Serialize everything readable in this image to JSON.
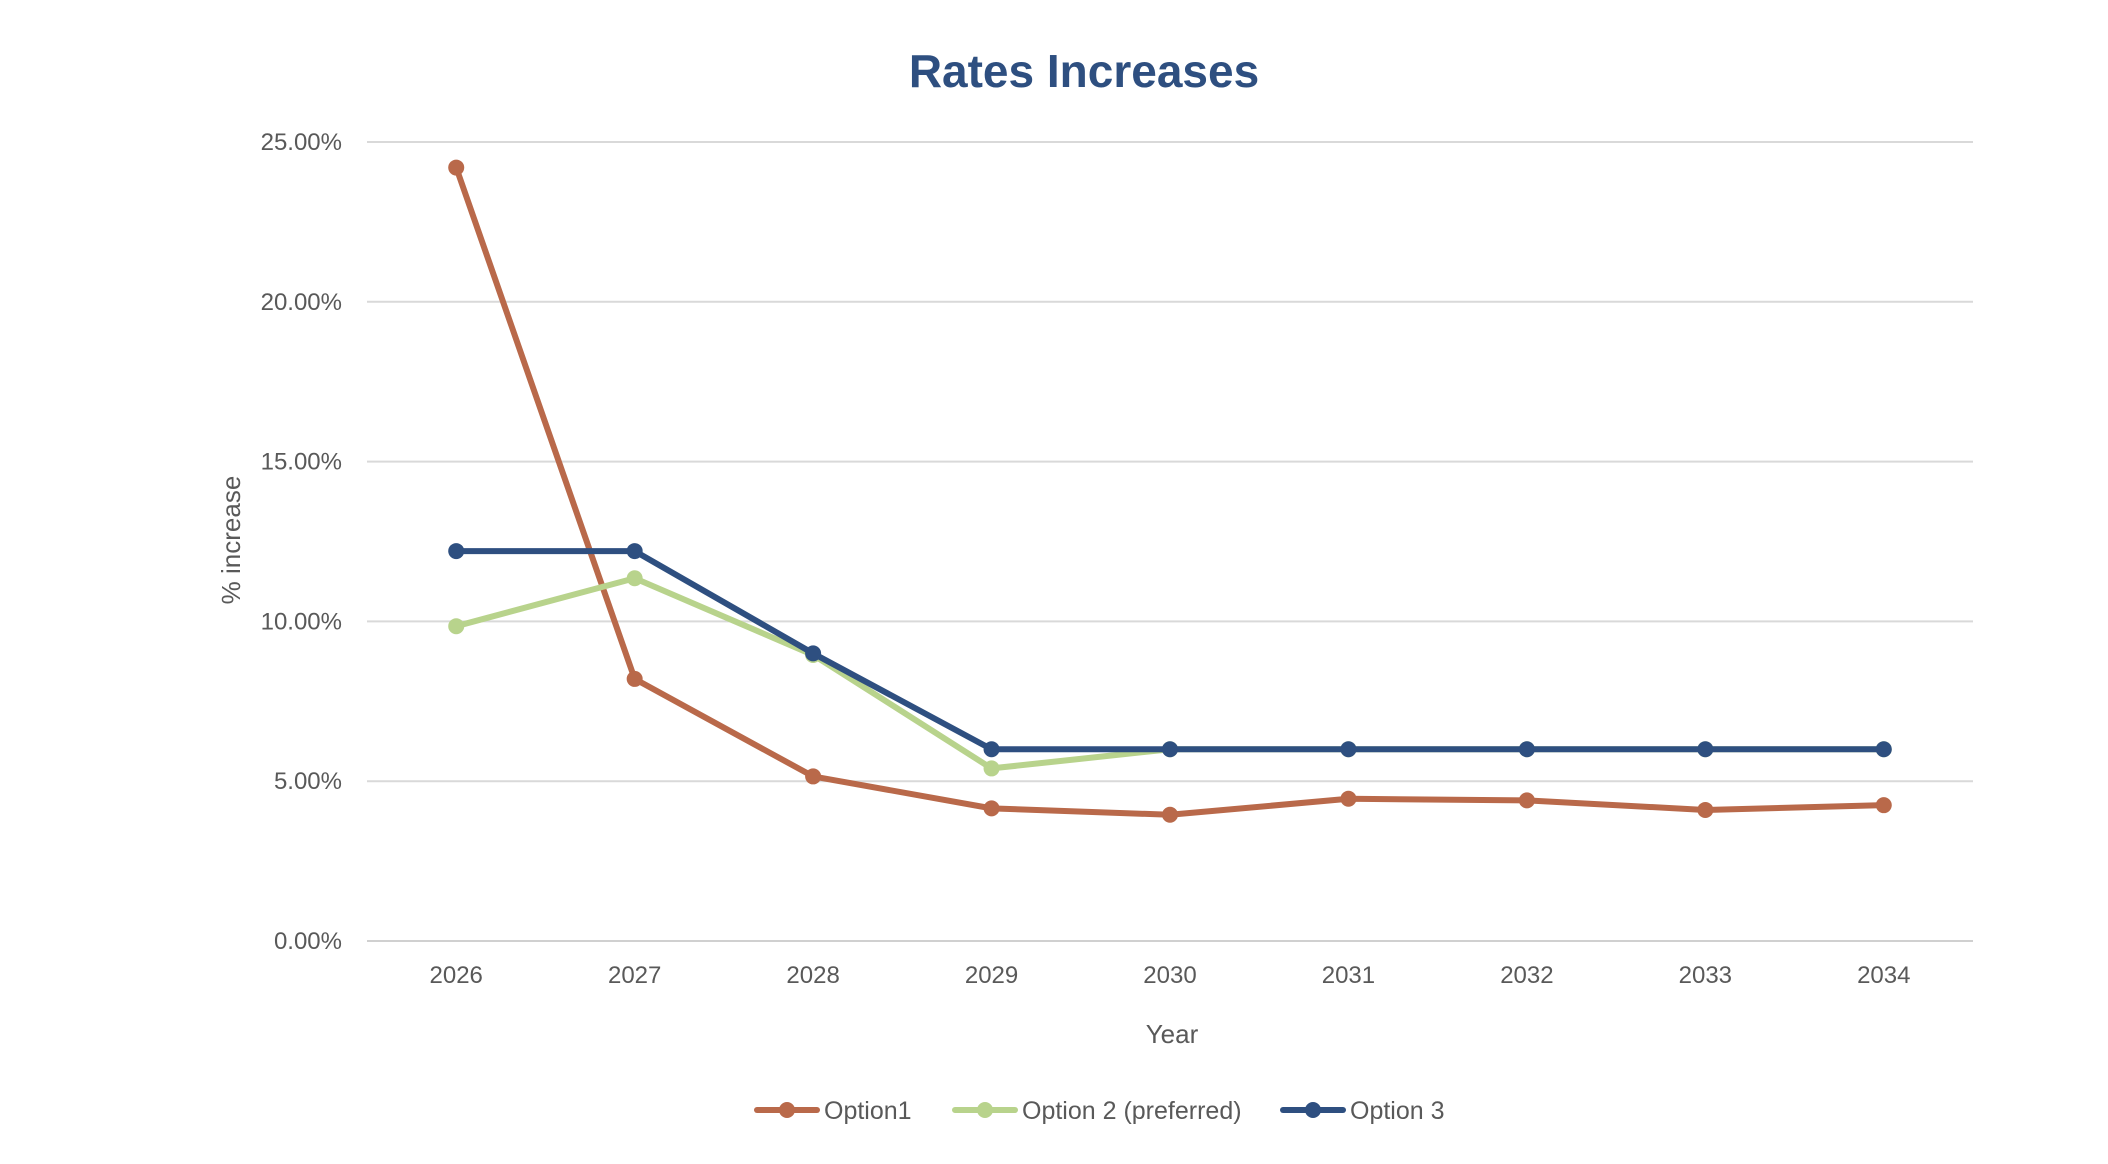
{
  "chart_data": {
    "type": "line",
    "title": "Rates Increases",
    "xlabel": "Year",
    "ylabel": "% increase",
    "categories": [
      "2026",
      "2027",
      "2028",
      "2029",
      "2030",
      "2031",
      "2032",
      "2033",
      "2034"
    ],
    "y_ticks": [
      "0.00%",
      "5.00%",
      "10.00%",
      "15.00%",
      "20.00%",
      "25.00%"
    ],
    "ylim": [
      0,
      25
    ],
    "grid": "horizontal",
    "legend": "bottom-center",
    "series": [
      {
        "name": "Option1",
        "color": "#b9694a",
        "values": [
          24.2,
          8.2,
          5.15,
          4.15,
          3.95,
          4.45,
          4.4,
          4.1,
          4.25
        ]
      },
      {
        "name": "Option 2 (preferred)",
        "color": "#b8d38c",
        "values": [
          9.85,
          11.35,
          8.95,
          5.4,
          6.0,
          6.0,
          6.0,
          6.0,
          6.0
        ]
      },
      {
        "name": "Option 3",
        "color": "#2e4f80",
        "values": [
          12.2,
          12.2,
          9.0,
          6.0,
          6.0,
          6.0,
          6.0,
          6.0,
          6.0
        ]
      }
    ]
  },
  "colors": {
    "title": "#2e4f80",
    "text": "#595959",
    "grid": "#d9d9d9"
  }
}
